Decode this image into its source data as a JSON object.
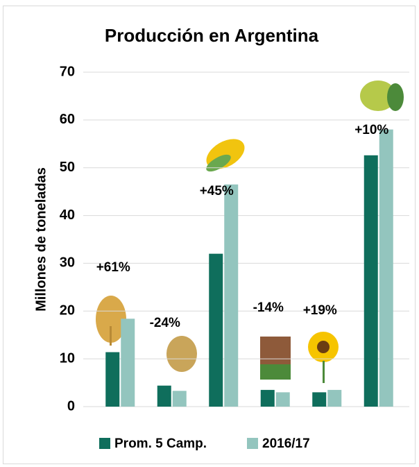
{
  "chart_data": {
    "type": "bar",
    "title": "Producción en Argentina",
    "y_label": "Millones de toneladas",
    "categories": [
      null,
      null,
      null,
      null,
      null,
      null
    ],
    "series": [
      {
        "name": "Prom. 5 Camp.",
        "color": "#0f6e5c",
        "values": [
          11.4,
          4.4,
          32,
          3.5,
          3.0,
          52.6
        ]
      },
      {
        "name": "2016/17",
        "color": "#93c5be",
        "values": [
          18.4,
          3.3,
          46.5,
          3.0,
          3.5,
          58
        ]
      }
    ],
    "annotations": [
      "+61%",
      "-24%",
      "+45%",
      "-14%",
      "+19%",
      "+10%"
    ],
    "ylim": [
      0,
      70
    ],
    "yticks": [
      0,
      10,
      20,
      30,
      40,
      50,
      60,
      70
    ],
    "grid": true,
    "legend": "bottom"
  }
}
